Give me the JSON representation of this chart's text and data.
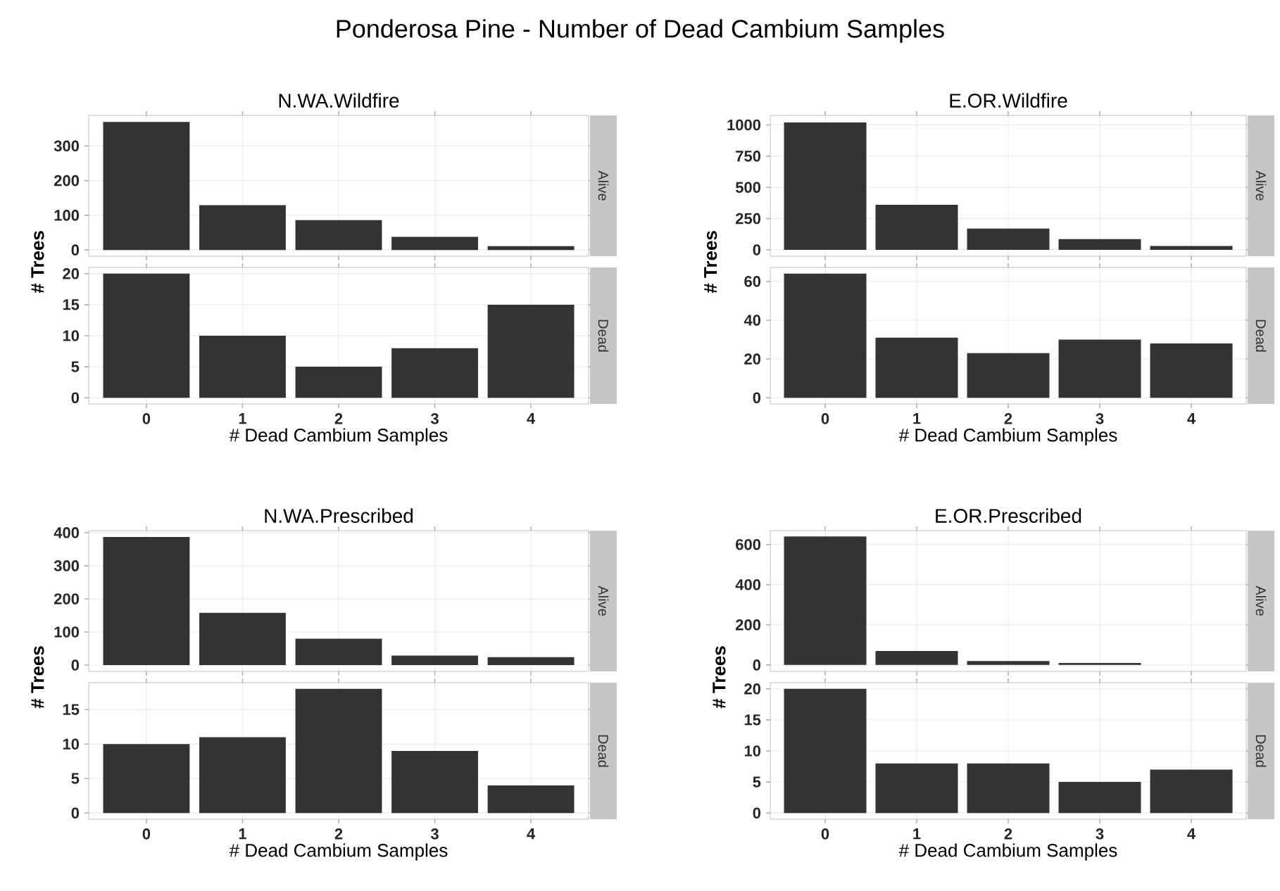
{
  "chart_data": [
    {
      "type": "bar",
      "title": "Ponderosa Pine - Number of Dead Cambium Samples",
      "subtitle": "N.WA.Wildfire",
      "ylabel": "# Trees",
      "y2label": "Alive",
      "categories": [
        "0",
        "1",
        "2",
        "3",
        "4"
      ],
      "values": [
        369,
        129,
        86,
        38,
        11
      ],
      "color": "#333333",
      "ylim": [
        -18,
        388
      ],
      "yticks": [
        0,
        100,
        200,
        300
      ],
      "grid": true,
      "tick_labels": "y"
    },
    {
      "type": "bar",
      "xlabel": "# Dead Cambium Samples",
      "y2label": "Dead",
      "categories": [
        "0",
        "1",
        "2",
        "3",
        "4"
      ],
      "values": [
        20,
        10,
        5,
        8,
        15
      ],
      "color": "#333333",
      "ylim": [
        -1,
        21
      ],
      "yticks": [
        0,
        5,
        10,
        15,
        20
      ],
      "grid": true
    },
    {
      "type": "bar",
      "title": "E.OR.Wildfire",
      "ylabel": "# Trees",
      "y2label": "Alive",
      "categories": [
        "0",
        "1",
        "2",
        "3",
        "4"
      ],
      "values": [
        1020,
        360,
        170,
        85,
        30
      ],
      "color": "#333333",
      "ylim": [
        -51,
        1076
      ],
      "yticks": [
        0,
        250,
        500,
        750,
        1000
      ],
      "grid": true,
      "tick_labels": "y"
    },
    {
      "type": "bar",
      "xlabel": "# Dead Cambium Samples",
      "y2label": "Dead",
      "categories": [
        "0",
        "1",
        "2",
        "3",
        "4"
      ],
      "values": [
        64,
        31,
        23,
        30,
        28
      ],
      "color": "#333333",
      "ylim": [
        -3.2,
        67.2
      ],
      "yticks": [
        0,
        20,
        40,
        60
      ],
      "grid": true
    },
    {
      "type": "bar",
      "title": "N.WA.Prescribed",
      "ylabel": "# Trees",
      "y2label": "Alive",
      "categories": [
        "0",
        "1",
        "2",
        "3",
        "4"
      ],
      "values": [
        387,
        158,
        80,
        29,
        24
      ],
      "color": "#333333",
      "ylim": [
        -19,
        406
      ],
      "yticks": [
        0,
        100,
        200,
        300,
        400
      ],
      "grid": true,
      "tick_labels": "y"
    },
    {
      "type": "bar",
      "xlabel": "# Dead Cambium Samples",
      "y2label": "Dead",
      "categories": [
        "0",
        "1",
        "2",
        "3",
        "4"
      ],
      "values": [
        10,
        11,
        18,
        9,
        4
      ],
      "color": "#333333",
      "ylim": [
        -0.9,
        18.9
      ],
      "yticks": [
        0,
        5,
        10,
        15
      ],
      "grid": true
    },
    {
      "type": "bar",
      "title": "E.OR.Prescribed",
      "ylabel": "# Trees",
      "y2label": "Alive",
      "categories": [
        "0",
        "1",
        "2",
        "3",
        "4"
      ],
      "values": [
        640,
        70,
        20,
        10,
        null
      ],
      "color": "#333333",
      "ylim": [
        -32,
        669
      ],
      "yticks": [
        0,
        200,
        400,
        600
      ],
      "grid": true,
      "tick_labels": "y"
    },
    {
      "type": "bar",
      "xlabel": "# Dead Cambium Samples",
      "y2label": "Dead",
      "categories": [
        "0",
        "1",
        "2",
        "3",
        "4"
      ],
      "values": [
        20,
        8,
        8,
        5,
        7
      ],
      "color": "#333333",
      "ylim": [
        -1,
        21
      ],
      "yticks": [
        0,
        5,
        10,
        15,
        20
      ],
      "grid": true
    }
  ]
}
